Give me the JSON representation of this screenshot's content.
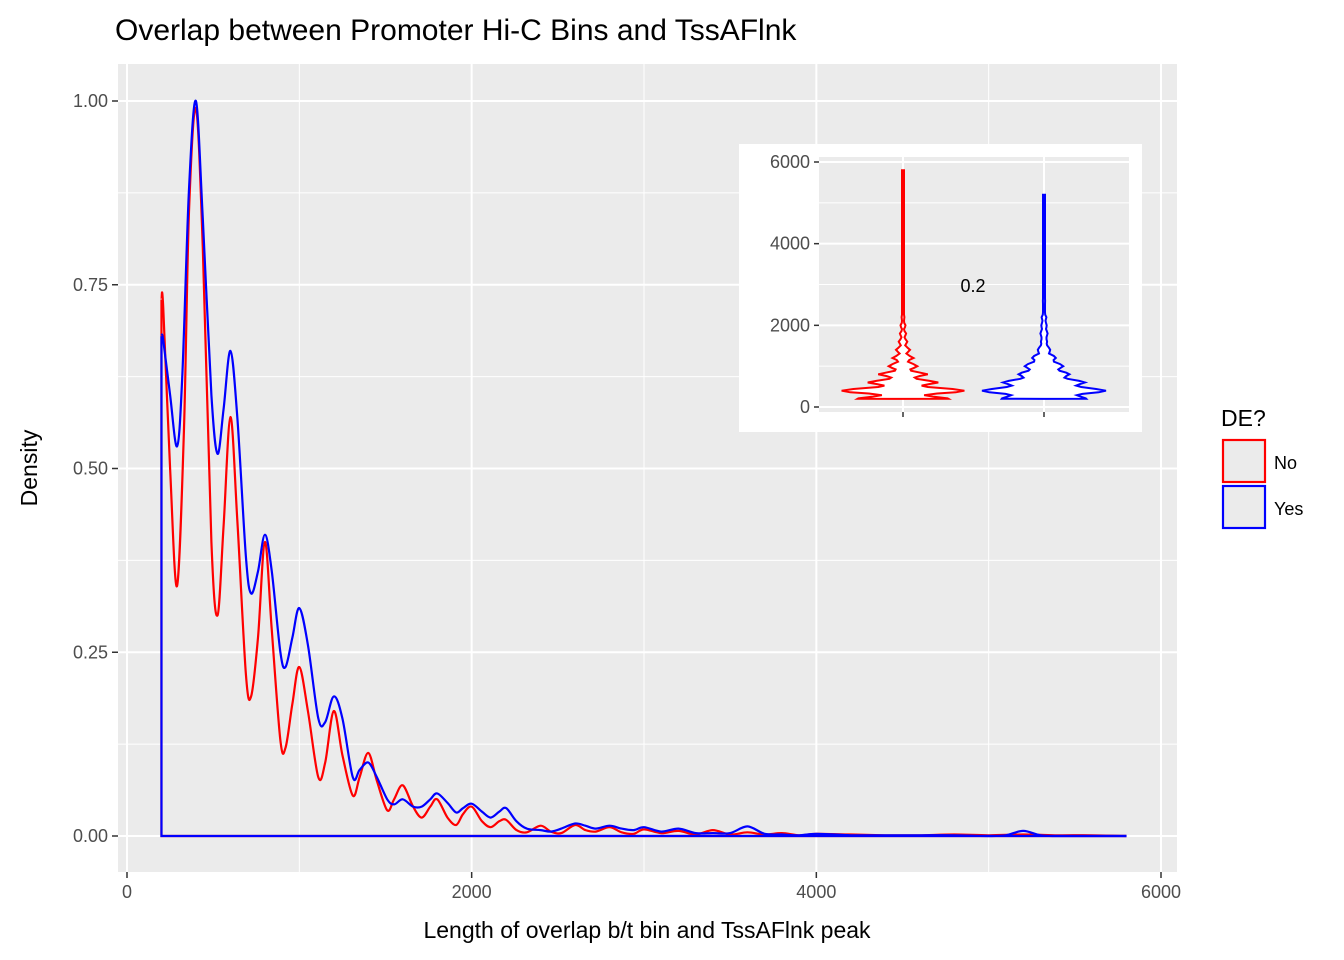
{
  "chart_data": [
    {
      "type": "line",
      "title": "Overlap between Promoter Hi-C Bins and TssAFlnk",
      "xlabel": "Length of overlap b/t bin and TssAFlnk peak",
      "ylabel": "Density",
      "xlim": [
        0,
        6000
      ],
      "ylim": [
        0,
        1.0
      ],
      "xticks": [
        "0",
        "2000",
        "4000",
        "6000"
      ],
      "yticks": [
        "0.00",
        "0.25",
        "0.50",
        "0.75",
        "1.00"
      ],
      "grid": true,
      "legend": {
        "title": "DE?",
        "position": "right",
        "entries": [
          "No",
          "Yes"
        ]
      },
      "series": [
        {
          "name": "No",
          "color": "#ff0000",
          "points": [
            [
              200,
              0
            ],
            [
              200,
              0.73
            ],
            [
              210,
              0.72
            ],
            [
              250,
              0.5
            ],
            [
              290,
              0.34
            ],
            [
              330,
              0.55
            ],
            [
              360,
              0.85
            ],
            [
              400,
              0.99
            ],
            [
              440,
              0.8
            ],
            [
              490,
              0.4
            ],
            [
              525,
              0.3
            ],
            [
              560,
              0.42
            ],
            [
              600,
              0.57
            ],
            [
              640,
              0.43
            ],
            [
              690,
              0.22
            ],
            [
              720,
              0.19
            ],
            [
              760,
              0.27
            ],
            [
              800,
              0.4
            ],
            [
              840,
              0.28
            ],
            [
              890,
              0.13
            ],
            [
              920,
              0.12
            ],
            [
              960,
              0.18
            ],
            [
              1000,
              0.23
            ],
            [
              1050,
              0.17
            ],
            [
              1110,
              0.08
            ],
            [
              1150,
              0.1
            ],
            [
              1200,
              0.17
            ],
            [
              1250,
              0.11
            ],
            [
              1310,
              0.055
            ],
            [
              1350,
              0.08
            ],
            [
              1400,
              0.113
            ],
            [
              1450,
              0.075
            ],
            [
              1510,
              0.035
            ],
            [
              1550,
              0.05
            ],
            [
              1600,
              0.069
            ],
            [
              1660,
              0.04
            ],
            [
              1710,
              0.025
            ],
            [
              1760,
              0.04
            ],
            [
              1800,
              0.05
            ],
            [
              1860,
              0.025
            ],
            [
              1910,
              0.015
            ],
            [
              1950,
              0.03
            ],
            [
              2000,
              0.04
            ],
            [
              2060,
              0.02
            ],
            [
              2110,
              0.012
            ],
            [
              2160,
              0.02
            ],
            [
              2200,
              0.022
            ],
            [
              2260,
              0.008
            ],
            [
              2320,
              0.005
            ],
            [
              2400,
              0.014
            ],
            [
              2460,
              0.006
            ],
            [
              2520,
              0.004
            ],
            [
              2600,
              0.015
            ],
            [
              2660,
              0.008
            ],
            [
              2720,
              0.006
            ],
            [
              2800,
              0.012
            ],
            [
              2870,
              0.005
            ],
            [
              2940,
              0.003
            ],
            [
              3000,
              0.009
            ],
            [
              3100,
              0.004
            ],
            [
              3200,
              0.007
            ],
            [
              3300,
              0.002
            ],
            [
              3400,
              0.008
            ],
            [
              3500,
              0.002
            ],
            [
              3600,
              0.005
            ],
            [
              3700,
              0.002
            ],
            [
              3800,
              0.004
            ],
            [
              3900,
              0.001
            ],
            [
              4000,
              0.003
            ],
            [
              4200,
              0.002
            ],
            [
              4400,
              0.001
            ],
            [
              4600,
              0.001
            ],
            [
              4800,
              0.002
            ],
            [
              5000,
              0.001
            ],
            [
              5200,
              0.002
            ],
            [
              5400,
              0.001
            ],
            [
              5600,
              0.001
            ],
            [
              5800,
              0.0
            ]
          ]
        },
        {
          "name": "Yes",
          "color": "#0000ff",
          "points": [
            [
              200,
              0
            ],
            [
              200,
              0.68
            ],
            [
              210,
              0.675
            ],
            [
              250,
              0.6
            ],
            [
              290,
              0.53
            ],
            [
              320,
              0.62
            ],
            [
              360,
              0.88
            ],
            [
              400,
              1.0
            ],
            [
              440,
              0.84
            ],
            [
              490,
              0.6
            ],
            [
              525,
              0.52
            ],
            [
              560,
              0.58
            ],
            [
              600,
              0.66
            ],
            [
              640,
              0.57
            ],
            [
              690,
              0.38
            ],
            [
              720,
              0.33
            ],
            [
              760,
              0.36
            ],
            [
              800,
              0.41
            ],
            [
              840,
              0.36
            ],
            [
              890,
              0.25
            ],
            [
              920,
              0.23
            ],
            [
              960,
              0.27
            ],
            [
              1000,
              0.31
            ],
            [
              1050,
              0.26
            ],
            [
              1110,
              0.16
            ],
            [
              1150,
              0.155
            ],
            [
              1200,
              0.19
            ],
            [
              1250,
              0.16
            ],
            [
              1310,
              0.08
            ],
            [
              1350,
              0.09
            ],
            [
              1400,
              0.1
            ],
            [
              1450,
              0.08
            ],
            [
              1510,
              0.05
            ],
            [
              1550,
              0.043
            ],
            [
              1600,
              0.05
            ],
            [
              1660,
              0.04
            ],
            [
              1710,
              0.04
            ],
            [
              1760,
              0.05
            ],
            [
              1800,
              0.058
            ],
            [
              1860,
              0.045
            ],
            [
              1910,
              0.032
            ],
            [
              1950,
              0.038
            ],
            [
              2000,
              0.044
            ],
            [
              2060,
              0.033
            ],
            [
              2110,
              0.025
            ],
            [
              2160,
              0.033
            ],
            [
              2200,
              0.038
            ],
            [
              2260,
              0.02
            ],
            [
              2320,
              0.01
            ],
            [
              2400,
              0.008
            ],
            [
              2460,
              0.006
            ],
            [
              2520,
              0.01
            ],
            [
              2600,
              0.017
            ],
            [
              2660,
              0.014
            ],
            [
              2720,
              0.01
            ],
            [
              2800,
              0.014
            ],
            [
              2870,
              0.01
            ],
            [
              2940,
              0.008
            ],
            [
              3000,
              0.012
            ],
            [
              3100,
              0.006
            ],
            [
              3200,
              0.01
            ],
            [
              3300,
              0.004
            ],
            [
              3400,
              0.004
            ],
            [
              3500,
              0.004
            ],
            [
              3600,
              0.013
            ],
            [
              3700,
              0.003
            ],
            [
              3800,
              0.002
            ],
            [
              3900,
              0.001
            ],
            [
              4000,
              0.003
            ],
            [
              4200,
              0.001
            ],
            [
              4400,
              0.001
            ],
            [
              4600,
              0.001
            ],
            [
              4800,
              0.001
            ],
            [
              5000,
              0.0
            ],
            [
              5100,
              0.001
            ],
            [
              5200,
              0.007
            ],
            [
              5300,
              0.001
            ],
            [
              5400,
              0.0
            ],
            [
              5600,
              0.0
            ],
            [
              5800,
              0.0
            ]
          ]
        }
      ]
    },
    {
      "type": "violin",
      "ylim": [
        0,
        6000
      ],
      "yticks": [
        "0",
        "2000",
        "4000",
        "6000"
      ],
      "annotation": "0.2",
      "series": [
        {
          "name": "No",
          "color": "#ff0000",
          "max": 5800
        },
        {
          "name": "Yes",
          "color": "#0000ff",
          "max": 5200
        }
      ]
    }
  ]
}
